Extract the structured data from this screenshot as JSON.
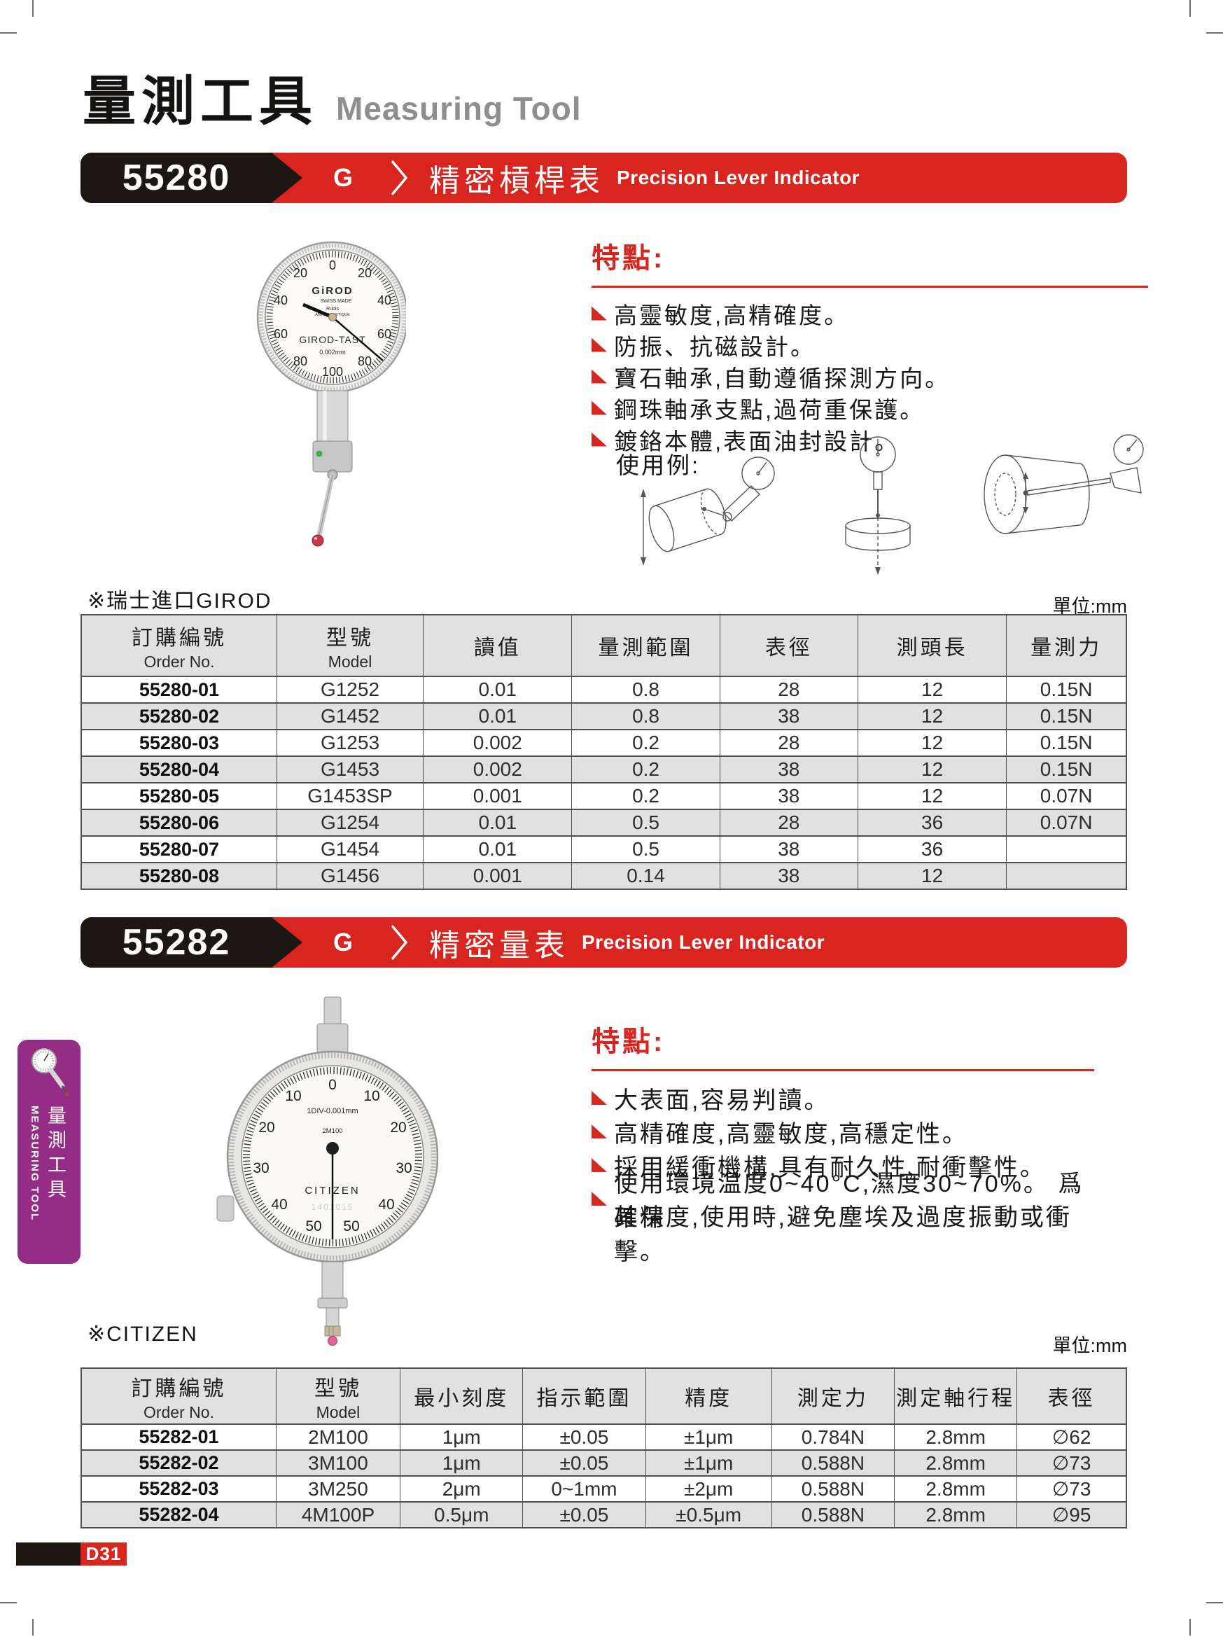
{
  "page": {
    "title_zh": "量測工具",
    "title_en": "Measuring Tool",
    "tag": "D31"
  },
  "sidebar": {
    "tab_zh": "量測工具",
    "tab_en": "MEASURING TOOL"
  },
  "s1": {
    "code": "55280",
    "grade": "G",
    "name_zh": "精密槓桿表",
    "name_en": "Precision Lever Indicator",
    "features_title": "特點:",
    "features": [
      "高靈敏度,高精確度。",
      "防振、抗磁設計。",
      "寶石軸承,自動遵循探測方向。",
      "鋼珠軸承支點,過荷重保護。",
      "鍍鉻本體,表面油封設計。"
    ],
    "usage_label": "使用例:",
    "origin_note": "※瑞士進口GIROD",
    "unit_note": "單位:mm",
    "dial": {
      "brand": "GiROD",
      "made": "SWISS MADE",
      "rubis": "Rubis",
      "anti": "ANTIMAGNETIQUE",
      "model": "GIROD-TAST",
      "res": "0.002mm",
      "numbers": [
        "0",
        "20",
        "40",
        "60",
        "80",
        "100"
      ]
    },
    "table": {
      "headers": [
        {
          "zh": "訂購編號",
          "en": "Order No."
        },
        {
          "zh": "型號",
          "en": "Model"
        },
        {
          "zh": "讀值"
        },
        {
          "zh": "量測範圍"
        },
        {
          "zh": "表徑"
        },
        {
          "zh": "測頭長"
        },
        {
          "zh": "量測力"
        }
      ],
      "rows": [
        [
          "55280-01",
          "G1252",
          "0.01",
          "0.8",
          "28",
          "12",
          "0.15N"
        ],
        [
          "55280-02",
          "G1452",
          "0.01",
          "0.8",
          "38",
          "12",
          "0.15N"
        ],
        [
          "55280-03",
          "G1253",
          "0.002",
          "0.2",
          "28",
          "12",
          "0.15N"
        ],
        [
          "55280-04",
          "G1453",
          "0.002",
          "0.2",
          "38",
          "12",
          "0.15N"
        ],
        [
          "55280-05",
          "G1453SP",
          "0.001",
          "0.2",
          "38",
          "12",
          "0.07N"
        ],
        [
          "55280-06",
          "G1254",
          "0.01",
          "0.5",
          "28",
          "36",
          "0.07N"
        ],
        [
          "55280-07",
          "G1454",
          "0.01",
          "0.5",
          "38",
          "36",
          ""
        ],
        [
          "55280-08",
          "G1456",
          "0.001",
          "0.14",
          "38",
          "12",
          ""
        ]
      ]
    }
  },
  "s2": {
    "code": "55282",
    "grade": "G",
    "name_zh": "精密量表",
    "name_en": "Precision Lever Indicator",
    "features_title": "特點:",
    "features": [
      "大表面,容易判讀。",
      "高精確度,高靈敏度,高穩定性。",
      "採用緩衝機構,具有耐久性,耐衝擊性。",
      "使用環境温度0~40°C,濕度30~70%。 爲確保"
    ],
    "feature_cont": "其精度,使用時,避免塵埃及過度振動或衝擊。",
    "origin_note": "※CITIZEN",
    "unit_note": "單位:mm",
    "dial": {
      "res": "1DIV-0.001mm",
      "model": "2M100",
      "brand": "CITIZEN",
      "serial": "1401015",
      "numbers": [
        "0",
        "10",
        "20",
        "30",
        "40",
        "50"
      ]
    },
    "table": {
      "headers": [
        {
          "zh": "訂購編號",
          "en": "Order No."
        },
        {
          "zh": "型號",
          "en": "Model"
        },
        {
          "zh": "最小刻度"
        },
        {
          "zh": "指示範圍"
        },
        {
          "zh": "精度"
        },
        {
          "zh": "測定力"
        },
        {
          "zh": "測定軸行程"
        },
        {
          "zh": "表徑"
        }
      ],
      "rows": [
        [
          "55282-01",
          "2M100",
          "1μm",
          "±0.05",
          "±1μm",
          "0.784N",
          "2.8mm",
          "∅62"
        ],
        [
          "55282-02",
          "3M100",
          "1μm",
          "±0.05",
          "±1μm",
          "0.588N",
          "2.8mm",
          "∅73"
        ],
        [
          "55282-03",
          "3M250",
          "2μm",
          "0~1mm",
          "±2μm",
          "0.588N",
          "2.8mm",
          "∅73"
        ],
        [
          "55282-04",
          "4M100P",
          "0.5μm",
          "±0.05",
          "±0.5μm",
          "0.588N",
          "2.8mm",
          "∅95"
        ]
      ]
    }
  },
  "colors": {
    "accent_red": "#d8251f",
    "banner_black": "#1d1714",
    "tab_purple": "#952d87",
    "table_gray": "#e1e1e1"
  }
}
